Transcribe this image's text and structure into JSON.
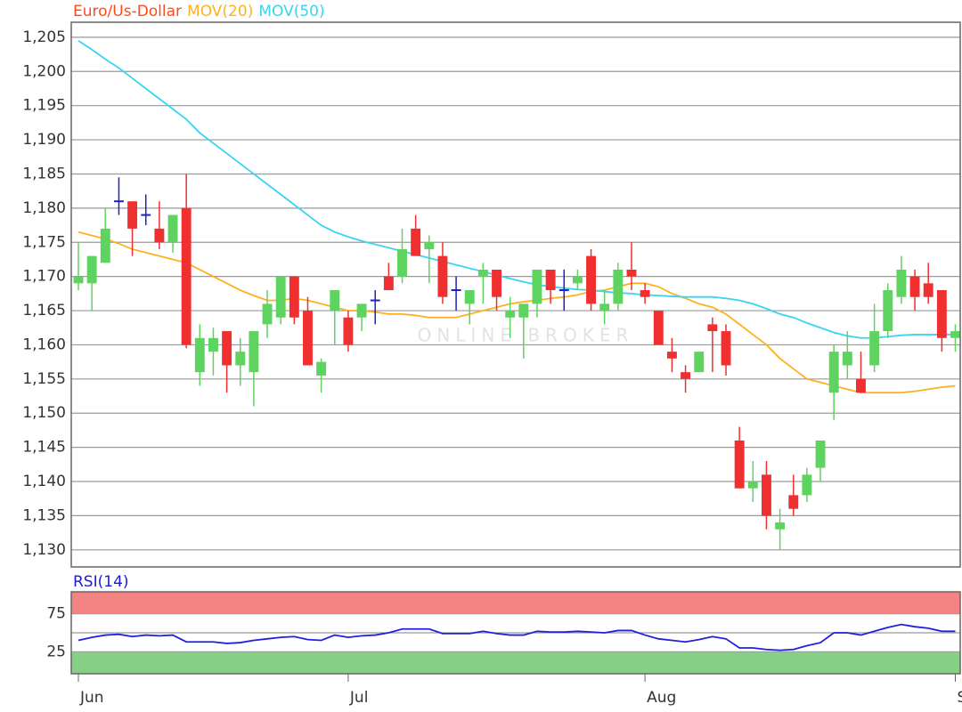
{
  "chart_data": [
    {
      "type": "candlestick",
      "series_name": "Euro/Us-Dollar",
      "series_color": "#ff4a1c",
      "up_color": "#5fd35f",
      "down_color": "#f03030",
      "flat_color": "#2020c8",
      "watermark": "ONLINE BROKER",
      "categories": [
        "Jun",
        null,
        null,
        null,
        null,
        null,
        null,
        null,
        null,
        null,
        null,
        null,
        null,
        null,
        null,
        null,
        null,
        null,
        null,
        null,
        "Jul",
        null,
        null,
        null,
        null,
        null,
        null,
        null,
        null,
        null,
        null,
        null,
        null,
        null,
        null,
        null,
        null,
        null,
        null,
        null,
        null,
        null,
        "Aug",
        null,
        null,
        null,
        null,
        null,
        null,
        null,
        null,
        null,
        null,
        null,
        null,
        null,
        null,
        null,
        null,
        null,
        null,
        null,
        null,
        null,
        null,
        "S"
      ],
      "open": [
        1.169,
        1.169,
        1.172,
        1.181,
        1.181,
        1.179,
        1.177,
        1.175,
        1.18,
        1.156,
        1.159,
        1.162,
        1.157,
        1.156,
        1.163,
        1.164,
        1.17,
        1.165,
        1.1555,
        1.165,
        1.164,
        1.164,
        1.1665,
        1.17,
        1.17,
        1.177,
        1.174,
        1.173,
        1.168,
        1.166,
        1.17,
        1.171,
        1.164,
        1.164,
        1.166,
        1.171,
        1.168,
        1.169,
        1.173,
        1.165,
        1.166,
        1.171,
        1.168,
        1.165,
        1.159,
        1.156,
        1.156,
        1.163,
        1.162,
        1.146,
        1.139,
        1.141,
        1.133,
        1.138,
        1.138,
        1.142,
        1.153,
        1.157,
        1.155,
        1.157,
        1.162,
        1.167,
        1.17,
        1.169,
        1.168,
        1.161
      ],
      "high": [
        1.175,
        1.173,
        1.18,
        1.1845,
        1.181,
        1.182,
        1.181,
        1.179,
        1.185,
        1.163,
        1.1625,
        1.162,
        1.161,
        1.162,
        1.168,
        1.17,
        1.17,
        1.167,
        1.158,
        1.168,
        1.165,
        1.166,
        1.168,
        1.172,
        1.177,
        1.179,
        1.176,
        1.175,
        1.17,
        1.168,
        1.172,
        1.171,
        1.167,
        1.166,
        1.171,
        1.171,
        1.171,
        1.171,
        1.174,
        1.168,
        1.172,
        1.175,
        1.169,
        1.165,
        1.161,
        1.157,
        1.159,
        1.164,
        1.163,
        1.148,
        1.143,
        1.143,
        1.136,
        1.141,
        1.142,
        1.146,
        1.16,
        1.162,
        1.159,
        1.166,
        1.169,
        1.173,
        1.171,
        1.172,
        1.168,
        1.163
      ],
      "low": [
        1.168,
        1.165,
        1.172,
        1.179,
        1.173,
        1.1775,
        1.174,
        1.1735,
        1.1595,
        1.154,
        1.1555,
        1.153,
        1.154,
        1.151,
        1.161,
        1.163,
        1.163,
        1.157,
        1.153,
        1.16,
        1.159,
        1.162,
        1.163,
        1.168,
        1.169,
        1.173,
        1.169,
        1.166,
        1.165,
        1.163,
        1.166,
        1.165,
        1.161,
        1.158,
        1.164,
        1.166,
        1.165,
        1.168,
        1.165,
        1.163,
        1.165,
        1.168,
        1.166,
        1.16,
        1.156,
        1.153,
        1.156,
        1.156,
        1.1555,
        1.139,
        1.137,
        1.133,
        1.13,
        1.135,
        1.137,
        1.14,
        1.149,
        1.155,
        1.153,
        1.156,
        1.161,
        1.166,
        1.165,
        1.166,
        1.159,
        1.159
      ],
      "close": [
        1.17,
        1.173,
        1.177,
        1.181,
        1.177,
        1.179,
        1.175,
        1.179,
        1.16,
        1.161,
        1.161,
        1.157,
        1.159,
        1.162,
        1.166,
        1.17,
        1.164,
        1.157,
        1.1575,
        1.168,
        1.16,
        1.166,
        1.1665,
        1.168,
        1.174,
        1.173,
        1.175,
        1.167,
        1.168,
        1.168,
        1.171,
        1.167,
        1.165,
        1.166,
        1.171,
        1.168,
        1.168,
        1.17,
        1.166,
        1.166,
        1.171,
        1.17,
        1.167,
        1.16,
        1.158,
        1.155,
        1.159,
        1.162,
        1.157,
        1.139,
        1.14,
        1.135,
        1.134,
        1.136,
        1.141,
        1.146,
        1.159,
        1.159,
        1.153,
        1.162,
        1.168,
        1.171,
        1.167,
        1.167,
        1.161,
        1.162
      ],
      "overlays": [
        {
          "name": "MOV(20)",
          "color": "#ffb020",
          "values": [
            1.1765,
            1.176,
            1.1755,
            1.1748,
            1.174,
            1.1735,
            1.173,
            1.1725,
            1.172,
            1.171,
            1.17,
            1.169,
            1.168,
            1.1672,
            1.1665,
            1.1665,
            1.1668,
            1.1665,
            1.166,
            1.1655,
            1.165,
            1.165,
            1.1648,
            1.1645,
            1.1645,
            1.1643,
            1.164,
            1.164,
            1.164,
            1.1645,
            1.165,
            1.1655,
            1.166,
            1.1663,
            1.1665,
            1.1668,
            1.167,
            1.1673,
            1.1678,
            1.168,
            1.1685,
            1.169,
            1.169,
            1.1685,
            1.1675,
            1.1668,
            1.166,
            1.1655,
            1.1645,
            1.163,
            1.1615,
            1.16,
            1.158,
            1.1565,
            1.155,
            1.1545,
            1.154,
            1.1535,
            1.153,
            1.153,
            1.153,
            1.153,
            1.1532,
            1.1535,
            1.1538,
            1.154
          ]
        },
        {
          "name": "MOV(50)",
          "color": "#38d4f4",
          "values": [
            1.2045,
            1.2032,
            1.2018,
            1.2005,
            1.199,
            1.1975,
            1.196,
            1.1945,
            1.193,
            1.191,
            1.1895,
            1.188,
            1.1865,
            1.185,
            1.1835,
            1.182,
            1.1805,
            1.179,
            1.1775,
            1.1765,
            1.1758,
            1.1752,
            1.1747,
            1.1742,
            1.1737,
            1.1732,
            1.1727,
            1.1722,
            1.1717,
            1.1712,
            1.1707,
            1.1702,
            1.1697,
            1.1692,
            1.1688,
            1.1685,
            1.1683,
            1.1681,
            1.168,
            1.1678,
            1.1676,
            1.1675,
            1.1673,
            1.1672,
            1.1671,
            1.167,
            1.167,
            1.167,
            1.1668,
            1.1665,
            1.166,
            1.1653,
            1.1645,
            1.164,
            1.1632,
            1.1625,
            1.1618,
            1.1613,
            1.161,
            1.161,
            1.1612,
            1.1614,
            1.1615,
            1.1615,
            1.1615,
            1.1615
          ]
        }
      ],
      "ylim": [
        1.1275,
        1.2072
      ],
      "yticks": [
        {
          "value": 1.13,
          "label": "1,130"
        },
        {
          "value": 1.135,
          "label": "1,135"
        },
        {
          "value": 1.14,
          "label": "1,140"
        },
        {
          "value": 1.145,
          "label": "1,145"
        },
        {
          "value": 1.15,
          "label": "1,150"
        },
        {
          "value": 1.155,
          "label": "1,155"
        },
        {
          "value": 1.16,
          "label": "1,160"
        },
        {
          "value": 1.165,
          "label": "1,165"
        },
        {
          "value": 1.17,
          "label": "1,170"
        },
        {
          "value": 1.175,
          "label": "1,175"
        },
        {
          "value": 1.18,
          "label": "1,180"
        },
        {
          "value": 1.185,
          "label": "1,185"
        },
        {
          "value": 1.19,
          "label": "1,190"
        },
        {
          "value": 1.195,
          "label": "1,195"
        },
        {
          "value": 1.2,
          "label": "1,200"
        },
        {
          "value": 1.205,
          "label": "1,205"
        }
      ],
      "grid": true
    },
    {
      "type": "line",
      "title": "RSI(14)",
      "title_color": "#1a1adc",
      "series": [
        {
          "color": "#2020e0",
          "values": [
            40,
            44,
            47,
            48,
            45,
            47,
            46,
            47,
            38,
            38,
            38,
            36,
            37,
            40,
            42,
            44,
            45,
            41,
            40,
            47,
            44,
            46,
            47,
            50,
            55,
            55,
            55,
            49,
            49,
            49,
            52,
            49,
            47,
            47,
            52,
            51,
            51,
            52,
            51,
            50,
            53,
            53,
            47,
            42,
            40,
            38,
            41,
            45,
            42,
            30,
            30,
            28,
            27,
            28,
            33,
            37,
            50,
            50,
            47,
            52,
            57,
            61,
            58,
            56,
            52,
            52
          ]
        }
      ],
      "zones": [
        {
          "above": 75,
          "color": "#f48383"
        },
        {
          "below": 25,
          "color": "#86d086"
        }
      ],
      "midline": 50,
      "ylim": [
        -4,
        104
      ],
      "yticks": [
        25,
        75
      ],
      "grid": false
    }
  ]
}
